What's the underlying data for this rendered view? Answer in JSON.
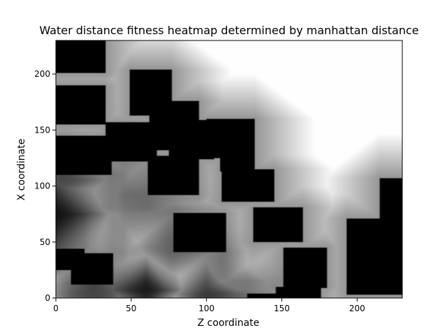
{
  "chart_data": {
    "type": "heatmap",
    "title": "Water distance fitness heatmap determined by manhattan distance",
    "xlabel": "Z coordinate",
    "ylabel": "X coordinate",
    "xlim": [
      0,
      230
    ],
    "ylim": [
      0,
      230
    ],
    "xticks": [
      0,
      50,
      100,
      150,
      200
    ],
    "yticks": [
      0,
      50,
      100,
      150,
      200
    ],
    "colormap": "grayscale (black = 0 / water, white = high fitness)",
    "colors": {
      "low": "#000000",
      "high": "#ffffff",
      "axes": "#000000"
    },
    "grid": false,
    "legend": "none",
    "water_blocks": [
      {
        "z": [
          0,
          33
        ],
        "x": [
          201,
          230
        ]
      },
      {
        "z": [
          0,
          33
        ],
        "x": [
          155,
          190
        ]
      },
      {
        "z": [
          0,
          37
        ],
        "x": [
          110,
          145
        ]
      },
      {
        "z": [
          33,
          67
        ],
        "x": [
          122,
          157
        ]
      },
      {
        "z": [
          49,
          77
        ],
        "x": [
          163,
          204
        ]
      },
      {
        "z": [
          62,
          95
        ],
        "x": [
          132,
          176
        ]
      },
      {
        "z": [
          75,
          105
        ],
        "x": [
          124,
          159
        ]
      },
      {
        "z": [
          61,
          95
        ],
        "x": [
          92,
          127
        ]
      },
      {
        "z": [
          100,
          132
        ],
        "x": [
          125,
          160
        ]
      },
      {
        "z": [
          109,
          132
        ],
        "x": [
          113,
          141
        ]
      },
      {
        "z": [
          110,
          145
        ],
        "x": [
          86,
          115
        ]
      },
      {
        "z": [
          78,
          113
        ],
        "x": [
          41,
          76
        ]
      },
      {
        "z": [
          131,
          164
        ],
        "x": [
          50,
          81
        ]
      },
      {
        "z": [
          0,
          19
        ],
        "x": [
          25,
          44
        ]
      },
      {
        "z": [
          10,
          38
        ],
        "x": [
          12,
          40
        ]
      },
      {
        "z": [
          151,
          180
        ],
        "x": [
          9,
          45
        ]
      },
      {
        "z": [
          127,
          155
        ],
        "x": [
          0,
          4
        ]
      },
      {
        "z": [
          146,
          176
        ],
        "x": [
          0,
          10
        ]
      },
      {
        "z": [
          193,
          230
        ],
        "x": [
          3,
          71
        ]
      },
      {
        "z": [
          215,
          230
        ],
        "x": [
          70,
          107
        ]
      }
    ],
    "dark_regions": [
      {
        "z": 0,
        "x": 75,
        "strength": 1.0,
        "radius": 28
      },
      {
        "z": 5,
        "x": 105,
        "strength": 0.6,
        "radius": 20
      },
      {
        "z": 25,
        "x": 3,
        "strength": 0.65,
        "radius": 22
      },
      {
        "z": 60,
        "x": 7,
        "strength": 0.95,
        "radius": 20
      },
      {
        "z": 100,
        "x": 3,
        "strength": 0.8,
        "radius": 20
      },
      {
        "z": 110,
        "x": 15,
        "strength": 0.45,
        "radius": 25
      },
      {
        "z": 45,
        "x": 80,
        "strength": 0.5,
        "radius": 30
      },
      {
        "z": 75,
        "x": 45,
        "strength": 0.4,
        "radius": 25
      }
    ]
  }
}
